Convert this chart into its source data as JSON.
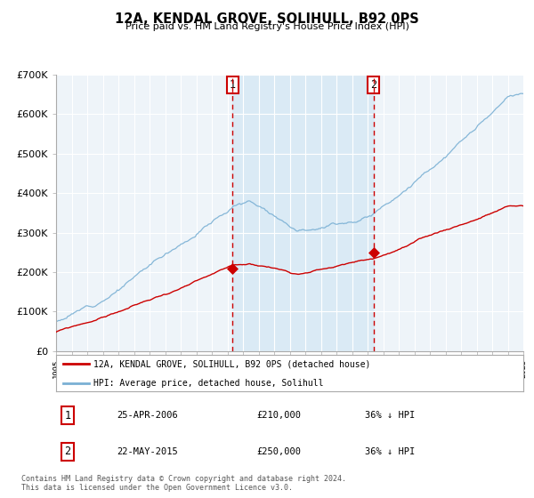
{
  "title": "12A, KENDAL GROVE, SOLIHULL, B92 0PS",
  "subtitle": "Price paid vs. HM Land Registry's House Price Index (HPI)",
  "x_start_year": 1995,
  "x_end_year": 2025,
  "y_min": 0,
  "y_max": 700000,
  "y_ticks": [
    0,
    100000,
    200000,
    300000,
    400000,
    500000,
    600000,
    700000
  ],
  "y_tick_labels": [
    "£0",
    "£100K",
    "£200K",
    "£300K",
    "£400K",
    "£500K",
    "£600K",
    "£700K"
  ],
  "hpi_color": "#7ab0d4",
  "price_color": "#cc0000",
  "shade_color": "#daeaf5",
  "dashed_color": "#cc0000",
  "marker1_year": 2006.32,
  "marker1_value": 210000,
  "marker2_year": 2015.38,
  "marker2_value": 250000,
  "marker1_label": "1",
  "marker2_label": "2",
  "legend_line1": "12A, KENDAL GROVE, SOLIHULL, B92 0PS (detached house)",
  "legend_line2": "HPI: Average price, detached house, Solihull",
  "table_rows": [
    {
      "num": "1",
      "date": "25-APR-2006",
      "price": "£210,000",
      "change": "36% ↓ HPI"
    },
    {
      "num": "2",
      "date": "22-MAY-2015",
      "price": "£250,000",
      "change": "36% ↓ HPI"
    }
  ],
  "footnote": "Contains HM Land Registry data © Crown copyright and database right 2024.\nThis data is licensed under the Open Government Licence v3.0.",
  "plot_bg": "#eef4f9"
}
